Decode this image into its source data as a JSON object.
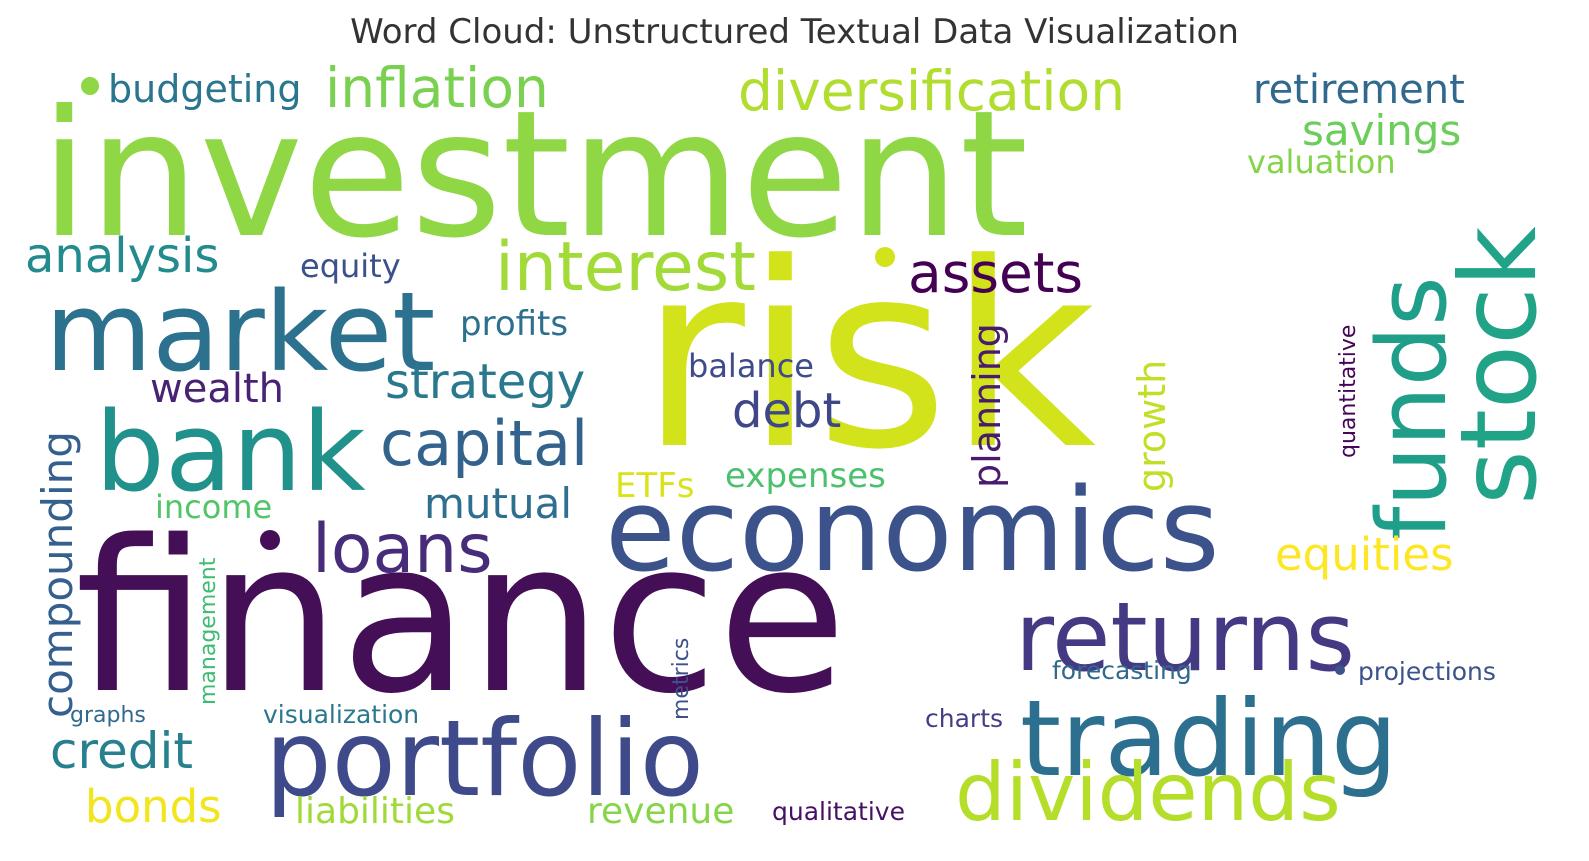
{
  "title": "Word Cloud: Unstructured Textual Data Visualization",
  "words": [
    {
      "text": "investment",
      "color": "#8fd744"
    },
    {
      "text": "risk",
      "color": "#d2e21b"
    },
    {
      "text": "finance",
      "color": "#440f56"
    },
    {
      "text": "economics",
      "color": "#3b528b"
    },
    {
      "text": "market",
      "color": "#2c728e"
    },
    {
      "text": "bank",
      "color": "#21918c"
    },
    {
      "text": "stock",
      "color": "#20a386"
    },
    {
      "text": "funds",
      "color": "#1f9e89"
    },
    {
      "text": "portfolio",
      "color": "#3e4a89"
    },
    {
      "text": "trading",
      "color": "#2d6f8e"
    },
    {
      "text": "returns",
      "color": "#443983"
    },
    {
      "text": "dividends",
      "color": "#b5de2b"
    },
    {
      "text": "interest",
      "color": "#a2da37"
    },
    {
      "text": "diversification",
      "color": "#b0dd2f"
    },
    {
      "text": "inflation",
      "color": "#7ad151"
    },
    {
      "text": "loans",
      "color": "#472c7a"
    },
    {
      "text": "capital",
      "color": "#33638d"
    },
    {
      "text": "assets",
      "color": "#440154"
    },
    {
      "text": "strategy",
      "color": "#2a788e"
    },
    {
      "text": "analysis",
      "color": "#238a8d"
    },
    {
      "text": "retirement",
      "color": "#31688e"
    },
    {
      "text": "savings",
      "color": "#6ccd5a"
    },
    {
      "text": "equities",
      "color": "#fde725"
    },
    {
      "text": "credit",
      "color": "#27808e"
    },
    {
      "text": "compounding",
      "color": "#355f8d"
    },
    {
      "text": "budgeting",
      "color": "#2a768e"
    },
    {
      "text": "debt",
      "color": "#3f4788"
    },
    {
      "text": "mutual",
      "color": "#2e6e8e"
    },
    {
      "text": "wealth",
      "color": "#482374"
    },
    {
      "text": "bonds",
      "color": "#f1e51d"
    },
    {
      "text": "profits",
      "color": "#2d708e"
    },
    {
      "text": "growth",
      "color": "#c0df25"
    },
    {
      "text": "planning",
      "color": "#481b6d"
    },
    {
      "text": "equity",
      "color": "#3b518b"
    },
    {
      "text": "balance",
      "color": "#3e4c8a"
    },
    {
      "text": "expenses",
      "color": "#4ac16d"
    },
    {
      "text": "ETFs",
      "color": "#dae319"
    },
    {
      "text": "valuation",
      "color": "#84d44b"
    },
    {
      "text": "income",
      "color": "#52c569"
    },
    {
      "text": "liabilities",
      "color": "#a0da39"
    },
    {
      "text": "revenue",
      "color": "#86d549"
    },
    {
      "text": "qualitative",
      "color": "#471063"
    },
    {
      "text": "quantitative",
      "color": "#450559"
    },
    {
      "text": "forecasting",
      "color": "#31688e"
    },
    {
      "text": "projections",
      "color": "#3b528b"
    },
    {
      "text": "charts",
      "color": "#433e85"
    },
    {
      "text": "visualization",
      "color": "#2a778e"
    },
    {
      "text": "graphs",
      "color": "#306a8e"
    },
    {
      "text": "management",
      "color": "#3dbc74"
    },
    {
      "text": "metrics",
      "color": "#3c508b"
    },
    {
      "text": "",
      "color": "#8fd744"
    },
    {
      "text": "",
      "color": "#d2e21b"
    },
    {
      "text": "",
      "color": "#440f56"
    },
    {
      "text": "",
      "color": "#3b528b"
    }
  ]
}
